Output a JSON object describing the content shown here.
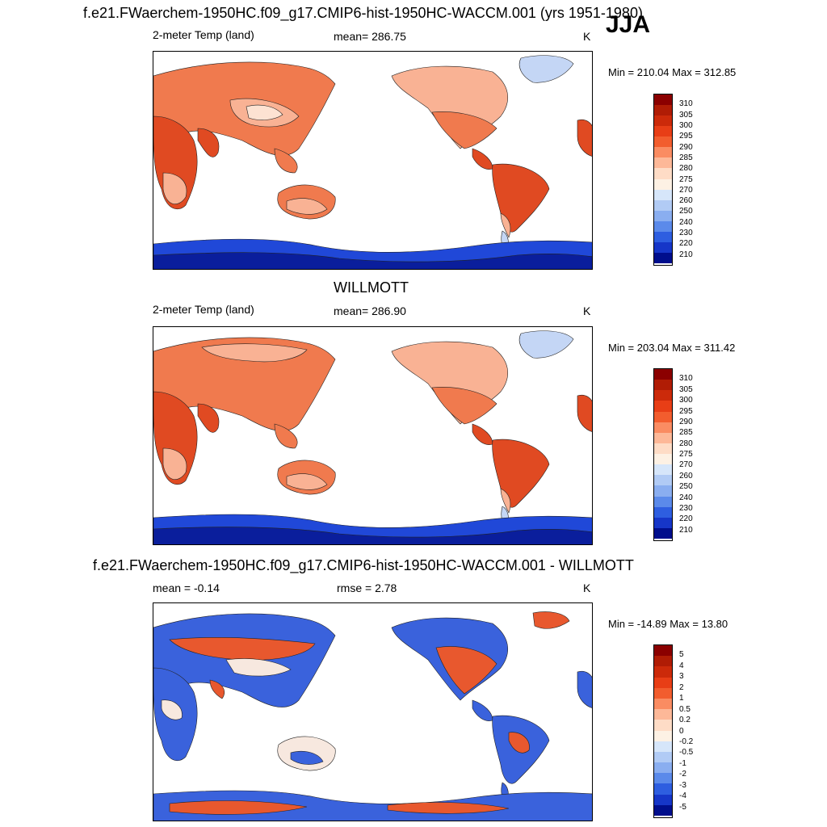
{
  "header": {
    "title": "f.e21.FWaerchem-1950HC.f09_g17.CMIP6-hist-1950HC-WACCM.001 (yrs 1951-1980)",
    "season": "JJA"
  },
  "panel1": {
    "variable": "2-meter Temp (land)",
    "mean_text": "mean= 286.75",
    "units": "K",
    "minmax": "Min = 210.04 Max = 312.85"
  },
  "panel2": {
    "dataset_title": "WILLMOTT",
    "variable": "2-meter Temp (land)",
    "mean_text": "mean= 286.90",
    "units": "K",
    "minmax": "Min = 203.04 Max = 311.42"
  },
  "panel3": {
    "title": "f.e21.FWaerchem-1950HC.f09_g17.CMIP6-hist-1950HC-WACCM.001 - WILLMOTT",
    "mean_text": "mean =  -0.14",
    "rmse_text": "rmse =   2.78",
    "units": "K",
    "minmax": "Min = -14.89 Max =  13.80"
  },
  "colorbar_temp": {
    "labels": [
      "310",
      "305",
      "300",
      "295",
      "290",
      "285",
      "280",
      "275",
      "270",
      "260",
      "250",
      "240",
      "230",
      "220",
      "210"
    ],
    "colors": [
      "#8b0000",
      "#b01c05",
      "#cc2a0a",
      "#e83e16",
      "#f25d2e",
      "#fa8c62",
      "#fdb898",
      "#fedcc6",
      "#fdf1e4",
      "#d6e6fa",
      "#b1cbf5",
      "#8aaef0",
      "#5b8aea",
      "#2e5ee0",
      "#1636c8",
      "#000e8c"
    ]
  },
  "colorbar_diff": {
    "labels": [
      "5",
      "4",
      "3",
      "2",
      "1",
      "0.5",
      "0.2",
      "0",
      "-0.2",
      "-0.5",
      "-1",
      "-2",
      "-3",
      "-4",
      "-5"
    ],
    "colors": [
      "#8b0000",
      "#b01c05",
      "#cc2a0a",
      "#e83e16",
      "#f25d2e",
      "#fa8c62",
      "#fdb898",
      "#fedcc6",
      "#fdf1e4",
      "#d6e6fa",
      "#b1cbf5",
      "#8aaef0",
      "#5b8aea",
      "#2e5ee0",
      "#1636c8",
      "#000e8c"
    ]
  },
  "map_colors": {
    "hot": "#e04a22",
    "warm": "#f07a4e",
    "mild": "#f9b294",
    "cool": "#fde2d2",
    "cold_land": "#c4d6f5",
    "ice": "#2048d8",
    "deep_ice": "#0a1e9c",
    "diff_pos": "#e8582e",
    "diff_neg": "#3a62dc",
    "diff_neutral": "#f7e8df"
  }
}
